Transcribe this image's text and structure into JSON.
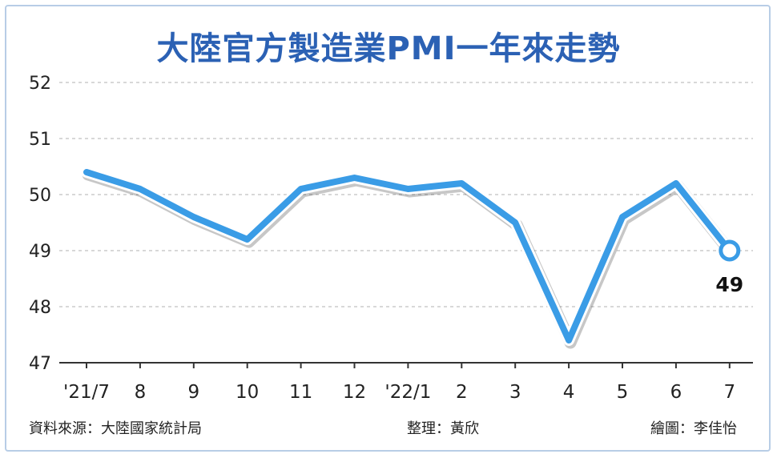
{
  "title": "大陸官方製造業PMI一年來走勢",
  "footer": {
    "source": "資料來源：大陸國家統計局",
    "editor": "整理：黃欣",
    "artist": "繪圖：李佳怡"
  },
  "colors": {
    "line": "#3a9ce6",
    "title": "#2b61b4",
    "grid": "#b0b0b0",
    "frame": "#b8cde6"
  },
  "chart_data": {
    "type": "line",
    "title": "大陸官方製造業PMI一年來走勢",
    "categories": [
      "'21/7",
      "8",
      "9",
      "10",
      "11",
      "12",
      "'22/1",
      "2",
      "3",
      "4",
      "5",
      "6",
      "7"
    ],
    "values": [
      50.4,
      50.1,
      49.6,
      49.2,
      50.1,
      50.3,
      50.1,
      50.2,
      49.5,
      47.4,
      49.6,
      50.2,
      49.0
    ],
    "ylim": [
      47,
      52
    ],
    "yticks": [
      47,
      48,
      49,
      50,
      51,
      52
    ],
    "grid": true,
    "annotation": "49"
  }
}
